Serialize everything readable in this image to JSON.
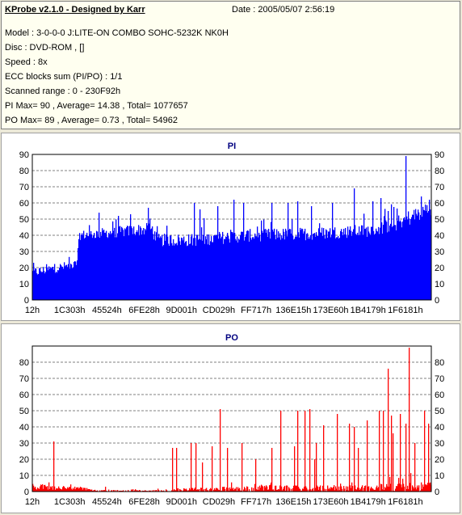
{
  "info": {
    "title": "KProbe v2.1.0 - Designed by Karr",
    "date": "Date : 2005/05/07 2:56:19",
    "lines": [
      "Model : 3-0-0-0 J:LITE-ON COMBO SOHC-5232K NK0H",
      "Disc : DVD-ROM ,  []",
      "Speed : 8x",
      "ECC blocks sum (PI/PO) : 1/1",
      "Scanned range : 0 - 230F92h",
      "PI Max= 90 , Average= 14.38 , Total= 1077657",
      "PO Max= 89 , Average= 0.73 , Total= 54962"
    ]
  },
  "chart_data": [
    {
      "type": "bar",
      "title": "PI",
      "x_ticks": [
        "12h",
        "1C303h",
        "45524h",
        "6FE28h",
        "9D001h",
        "CD029h",
        "FF717h",
        "136E15h",
        "173E60h",
        "1B4179h",
        "1F6181h"
      ],
      "ylim": [
        0,
        90
      ],
      "y_ticks": [
        0,
        10,
        20,
        30,
        40,
        50,
        60,
        70,
        80,
        90
      ],
      "grid": true,
      "color": "#0000ff",
      "profile": [
        [
          0.0,
          17,
          3
        ],
        [
          0.11,
          22,
          3
        ],
        [
          0.118,
          40,
          3
        ],
        [
          0.3,
          44,
          4
        ],
        [
          0.31,
          37,
          4
        ],
        [
          0.4,
          37,
          4
        ],
        [
          0.55,
          40,
          4
        ],
        [
          0.7,
          41,
          4
        ],
        [
          0.85,
          43,
          4
        ],
        [
          0.92,
          48,
          5
        ],
        [
          1.0,
          57,
          5
        ]
      ],
      "spikes": [
        [
          0.166,
          54
        ],
        [
          0.215,
          52
        ],
        [
          0.245,
          53
        ],
        [
          0.29,
          57
        ],
        [
          0.405,
          60
        ],
        [
          0.42,
          56
        ],
        [
          0.465,
          58
        ],
        [
          0.505,
          62
        ],
        [
          0.53,
          60
        ],
        [
          0.6,
          60
        ],
        [
          0.64,
          60
        ],
        [
          0.665,
          61
        ],
        [
          0.7,
          58
        ],
        [
          0.752,
          60
        ],
        [
          0.808,
          69
        ],
        [
          0.854,
          61
        ],
        [
          0.875,
          63
        ],
        [
          0.893,
          55
        ],
        [
          0.937,
          89
        ],
        [
          0.975,
          64
        ],
        [
          0.985,
          59
        ],
        [
          0.995,
          62
        ]
      ]
    },
    {
      "type": "bar",
      "title": "PO",
      "x_ticks": [
        "12h",
        "1C303h",
        "45524h",
        "6FE28h",
        "9D001h",
        "CD029h",
        "FF717h",
        "136E15h",
        "173E60h",
        "1B4179h",
        "1F6181h"
      ],
      "ylim": [
        0,
        90
      ],
      "y_ticks": [
        0,
        10,
        20,
        30,
        40,
        50,
        60,
        70,
        80
      ],
      "grid": true,
      "color": "#ff0000",
      "profile": [
        [
          0.0,
          3,
          2
        ],
        [
          0.12,
          2,
          1
        ],
        [
          0.16,
          0.5,
          0.5
        ],
        [
          0.35,
          0.5,
          0.5
        ],
        [
          0.36,
          1,
          1
        ],
        [
          0.6,
          2,
          2
        ],
        [
          0.8,
          2,
          2
        ],
        [
          1.0,
          3,
          3
        ]
      ],
      "spikes": [
        [
          0.052,
          31
        ],
        [
          0.182,
          3
        ],
        [
          0.35,
          27
        ],
        [
          0.362,
          27
        ],
        [
          0.398,
          30
        ],
        [
          0.41,
          30
        ],
        [
          0.425,
          18
        ],
        [
          0.45,
          28
        ],
        [
          0.47,
          51
        ],
        [
          0.488,
          27
        ],
        [
          0.525,
          30
        ],
        [
          0.56,
          20
        ],
        [
          0.6,
          27
        ],
        [
          0.622,
          50
        ],
        [
          0.657,
          28
        ],
        [
          0.665,
          50
        ],
        [
          0.683,
          50
        ],
        [
          0.695,
          51
        ],
        [
          0.708,
          20
        ],
        [
          0.712,
          30
        ],
        [
          0.73,
          41
        ],
        [
          0.765,
          48
        ],
        [
          0.795,
          42
        ],
        [
          0.808,
          40
        ],
        [
          0.818,
          27
        ],
        [
          0.84,
          44
        ],
        [
          0.87,
          50
        ],
        [
          0.88,
          50
        ],
        [
          0.893,
          76
        ],
        [
          0.9,
          47
        ],
        [
          0.905,
          36
        ],
        [
          0.922,
          48
        ],
        [
          0.938,
          42
        ],
        [
          0.946,
          89
        ],
        [
          0.96,
          30
        ],
        [
          0.983,
          50
        ],
        [
          0.993,
          42
        ]
      ]
    }
  ]
}
